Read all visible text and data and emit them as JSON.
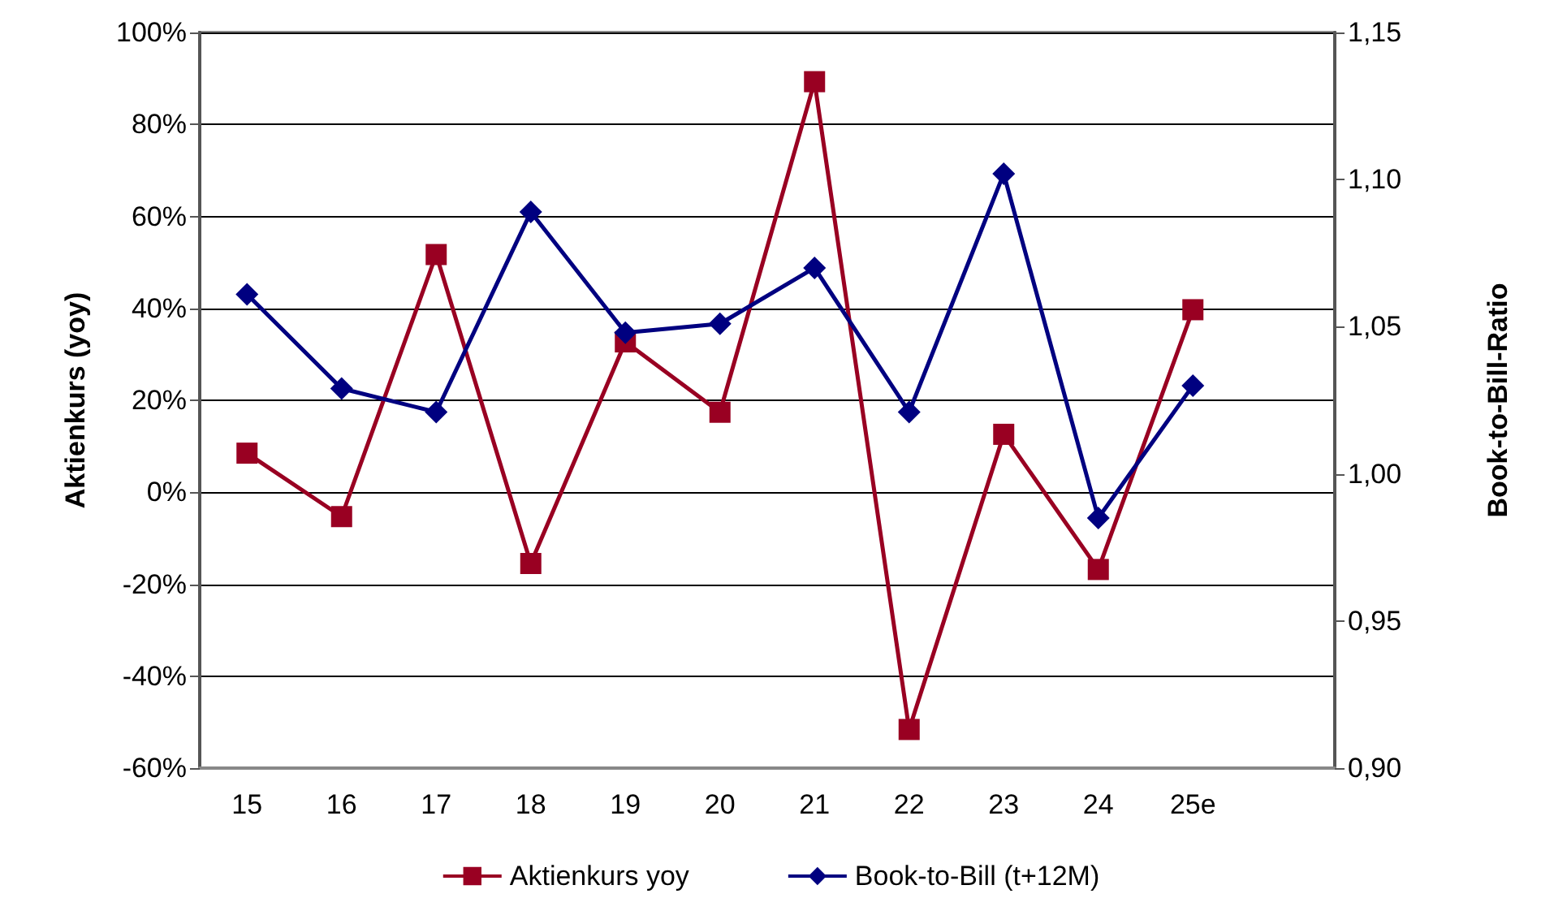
{
  "chart_data": {
    "type": "line",
    "categories": [
      "15",
      "16",
      "17",
      "18",
      "19",
      "20",
      "21",
      "22",
      "23",
      "24",
      "25e",
      null
    ],
    "series": [
      {
        "name": "Aktienkurs yoy",
        "color": "#990022",
        "marker": "square",
        "values": [
          8.5,
          -5.3,
          51.7,
          -15.5,
          32.7,
          17.4,
          89.3,
          -51.6,
          12.6,
          -16.8,
          39.7,
          null
        ]
      },
      {
        "name": "Book-to-Bill (t+12M)",
        "color": "#000080",
        "marker": "diamond",
        "axis": "y2",
        "values": [
          1.061,
          1.029,
          1.021,
          1.089,
          1.048,
          1.051,
          1.07,
          1.021,
          1.102,
          0.985,
          1.03,
          null
        ]
      }
    ],
    "ylabel": "Aktienkurs (yoy)",
    "y2label": "Book-to-Bill-Ratio",
    "ylim": [
      -60,
      100
    ],
    "yticks": [
      {
        "value": -60,
        "label": "-60%"
      },
      {
        "value": -40,
        "label": "-40%"
      },
      {
        "value": -20,
        "label": "-20%"
      },
      {
        "value": 0,
        "label": "0%"
      },
      {
        "value": 20,
        "label": "20%"
      },
      {
        "value": 40,
        "label": "40%"
      },
      {
        "value": 60,
        "label": "60%"
      },
      {
        "value": 80,
        "label": "80%"
      },
      {
        "value": 100,
        "label": "100%"
      }
    ],
    "y2lim": [
      0.9,
      1.15
    ],
    "y2ticks": [
      {
        "value": 0.9,
        "label": "0,90"
      },
      {
        "value": 0.95,
        "label": "0,95"
      },
      {
        "value": 1.0,
        "label": "1,00"
      },
      {
        "value": 1.05,
        "label": "1,05"
      },
      {
        "value": 1.1,
        "label": "1,10"
      },
      {
        "value": 1.15,
        "label": "1,15"
      }
    ],
    "grid": "y",
    "legend": "bottom",
    "line_style": "solid"
  }
}
